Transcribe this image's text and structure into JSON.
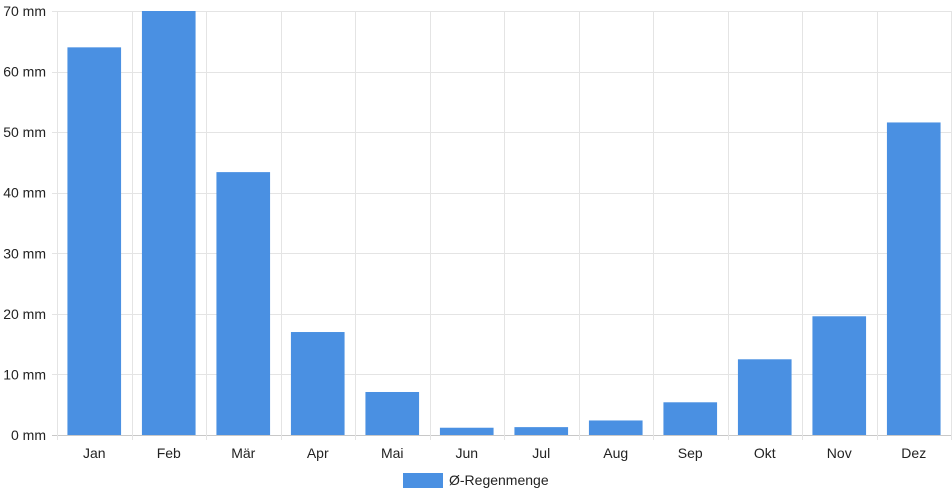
{
  "chart_data": {
    "type": "bar",
    "title": "",
    "xlabel": "",
    "ylabel": "",
    "categories": [
      "Jan",
      "Feb",
      "Mär",
      "Apr",
      "Mai",
      "Jun",
      "Jul",
      "Aug",
      "Sep",
      "Okt",
      "Nov",
      "Dez"
    ],
    "series": [
      {
        "name": "Ø-Regenmenge",
        "values": [
          64,
          70,
          43.4,
          17,
          7.1,
          1.2,
          1.3,
          2.4,
          5.4,
          12.5,
          19.6,
          51.6
        ],
        "color": "#4a90e2"
      }
    ],
    "ylim": [
      0,
      70
    ],
    "yticks": [
      0,
      10,
      20,
      30,
      40,
      50,
      60,
      70
    ],
    "ytick_labels": [
      "0 mm",
      "10 mm",
      "20 mm",
      "30 mm",
      "40 mm",
      "50 mm",
      "60 mm",
      "70 mm"
    ],
    "grid": true,
    "legend_position": "bottom-center"
  }
}
